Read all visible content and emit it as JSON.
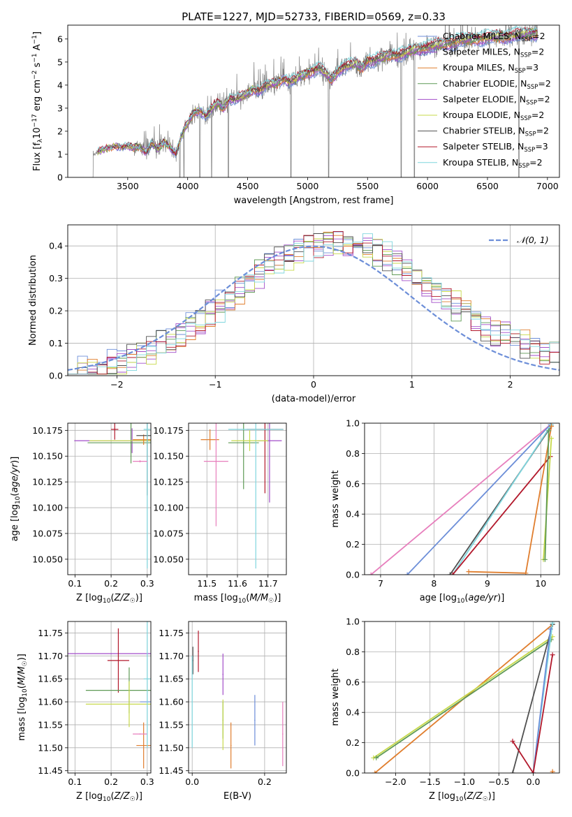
{
  "figure_title": "PLATE=1227, MJD=52733, FIBERID=0569, z=0.33",
  "colors": {
    "c0": "#6c8ed8",
    "c1": "#6c8ed8",
    "c2": "#e07e2e",
    "c3": "#5f9a55",
    "c4": "#a24dc9",
    "c5": "#c7d94a",
    "c6": "#505050",
    "c7": "#b2182b",
    "c8": "#7fd6de",
    "pink": "#e77fbd",
    "grid": "#b0b0b0"
  },
  "chart_data": [
    {
      "id": "spectrum",
      "type": "line",
      "xlabel": "wavelength [Angstrom, rest frame]",
      "ylabel": "Flux [f_λ 10^-17 erg cm^-2 s^-1 A^-1]",
      "xlim": [
        3000,
        7100
      ],
      "ylim": [
        0,
        6.6
      ],
      "xticks": [
        3500,
        4000,
        4500,
        5000,
        5500,
        6000,
        6500,
        7000
      ],
      "yticks": [
        0,
        1,
        2,
        3,
        4,
        5,
        6
      ],
      "grid": false,
      "legend": "top-right",
      "legend_entries": [
        {
          "text": "Chabrier MILES, N",
          "sub": "SSP",
          "tail": "=2"
        },
        {
          "text": "Salpeter MILES, N",
          "sub": "SSP",
          "tail": "=2"
        },
        {
          "text": "Kroupa MILES, N",
          "sub": "SSP",
          "tail": "=3"
        },
        {
          "text": "Chabrier ELODIE, N",
          "sub": "SSP",
          "tail": "=2"
        },
        {
          "text": "Salpeter ELODIE, N",
          "sub": "SSP",
          "tail": "=2"
        },
        {
          "text": "Kroupa ELODIE, N",
          "sub": "SSP",
          "tail": "=2"
        },
        {
          "text": "Chabrier STELIB, N",
          "sub": "SSP",
          "tail": "=2"
        },
        {
          "text": "Salpeter STELIB, N",
          "sub": "SSP",
          "tail": "=3"
        },
        {
          "text": "Kroupa STELIB, N",
          "sub": "SSP",
          "tail": "=2"
        }
      ],
      "data_range": [
        3200,
        6920
      ],
      "continuum": {
        "x": [
          3200,
          3250,
          3300,
          3350,
          3400,
          3450,
          3500,
          3550,
          3600,
          3650,
          3700,
          3750,
          3800,
          3850,
          3900,
          3950,
          4000,
          4050,
          4100,
          4150,
          4200,
          4250,
          4300,
          4350,
          4400,
          4450,
          4500,
          4550,
          4600,
          4650,
          4700,
          4750,
          4800,
          4850,
          4900,
          4950,
          5000,
          5050,
          5100,
          5150,
          5200,
          5250,
          5300,
          5350,
          5400,
          5450,
          5500,
          5550,
          5600,
          5650,
          5700,
          5750,
          5800,
          5850,
          5900,
          5950,
          6000,
          6100,
          6200,
          6300,
          6400,
          6500,
          6600,
          6700,
          6800,
          6920
        ],
        "y": [
          0.9,
          1.1,
          1.2,
          1.3,
          1.35,
          1.3,
          1.35,
          1.25,
          1.35,
          1.1,
          1.45,
          1.2,
          1.5,
          1.35,
          1.0,
          1.8,
          2.3,
          2.8,
          2.9,
          2.6,
          2.95,
          3.2,
          3.0,
          3.4,
          3.35,
          3.45,
          3.6,
          3.8,
          3.75,
          3.9,
          4.0,
          4.05,
          4.25,
          4.1,
          4.2,
          4.35,
          4.5,
          4.6,
          4.7,
          4.45,
          4.2,
          4.6,
          4.75,
          4.8,
          4.9,
          4.7,
          5.05,
          5.0,
          5.1,
          5.2,
          5.3,
          5.25,
          5.3,
          5.4,
          5.5,
          5.55,
          5.6,
          5.7,
          5.8,
          5.9,
          5.95,
          6.0,
          6.05,
          6.1,
          6.15,
          6.2
        ]
      },
      "noise_amplitude": 0.55,
      "absorption_lines": [
        3934,
        3969,
        4102,
        4200,
        4340,
        4861,
        5175,
        5780,
        5890,
        6762
      ]
    },
    {
      "id": "residuals",
      "type": "histogram",
      "xlabel": "(data-model)/error",
      "ylabel": "Normed distribution",
      "xlim": [
        -2.5,
        2.5
      ],
      "ylim": [
        0,
        0.465
      ],
      "xticks": [
        -2,
        -1,
        0,
        1,
        2
      ],
      "yticks": [
        0.0,
        0.1,
        0.2,
        0.3,
        0.4
      ],
      "grid": true,
      "legend": "top-right",
      "gaussian_label": "𝒩(0, 1)",
      "bin_edges": [
        -2.5,
        2.5
      ],
      "nbins": 50
    },
    {
      "id": "age-vs-Z",
      "type": "errorbar",
      "xlabel": "Z [log10(Z/Z☉)]",
      "ylabel": "age [log10(age/yr)]",
      "xlim": [
        0.08,
        0.31
      ],
      "ylim": [
        10.035,
        10.182
      ],
      "xticks": [
        0.1,
        0.2,
        0.3
      ],
      "yticks": [
        10.05,
        10.075,
        10.1,
        10.125,
        10.15,
        10.175
      ],
      "grid": true,
      "points": [
        {
          "c": "c4",
          "x": 0.258,
          "y": 10.165,
          "xerr": 0.16,
          "yerr": 0.012
        },
        {
          "c": "c3",
          "x": 0.255,
          "y": 10.163,
          "xerr": 0.12,
          "yerr": 0.02
        },
        {
          "c": "c5",
          "x": 0.3,
          "y": 10.165,
          "xerr": 0.16,
          "yerr": 0.005
        },
        {
          "c": "c2",
          "x": 0.29,
          "y": 10.166,
          "xerr": 0.03,
          "yerr": 0.005
        },
        {
          "c": "c7",
          "x": 0.21,
          "y": 10.176,
          "xerr": 0.01,
          "yerr": 0.01
        },
        {
          "c": "c6",
          "x": 0.3,
          "y": 10.17,
          "xerr": 0.03,
          "yerr": 0.058
        },
        {
          "c": "c8",
          "x": 0.3,
          "y": 10.176,
          "xerr": 0.01,
          "yerr": 0.135
        },
        {
          "c": "pink",
          "x": 0.28,
          "y": 10.145,
          "xerr": 0.02,
          "yerr": 0.001
        }
      ]
    },
    {
      "id": "age-vs-mass",
      "type": "errorbar",
      "xlabel": "mass [log10(M/M☉)]",
      "ylabel": "",
      "xlim": [
        11.44,
        11.76
      ],
      "ylim": [
        10.035,
        10.182
      ],
      "xticks": [
        11.5,
        11.6,
        11.7
      ],
      "yticks": [
        10.05,
        10.075,
        10.1,
        10.125,
        10.15,
        10.175
      ],
      "grid": true,
      "points": [
        {
          "c": "c2",
          "x": 11.51,
          "y": 10.166,
          "xerr": 0.03,
          "yerr": 0.01
        },
        {
          "c": "pink",
          "x": 11.53,
          "y": 10.145,
          "xerr": 0.04,
          "yerr": 0.063
        },
        {
          "c": "c3",
          "x": 11.62,
          "y": 10.163,
          "xerr": 0.05,
          "yerr": 0.045
        },
        {
          "c": "c4",
          "x": 11.705,
          "y": 10.165,
          "xerr": 0.04,
          "yerr": 0.06
        },
        {
          "c": "c7",
          "x": 11.69,
          "y": 10.176,
          "xerr": 0.06,
          "yerr": 0.062
        },
        {
          "c": "c8",
          "x": 11.66,
          "y": 10.176,
          "xerr": 0.09,
          "yerr": 0.135
        },
        {
          "c": "c5",
          "x": 11.64,
          "y": 10.165,
          "xerr": 0.06,
          "yerr": 0.01
        }
      ]
    },
    {
      "id": "weight-vs-age",
      "type": "line",
      "xlabel": "age [log10(age/yr)]",
      "ylabel": "mass weight",
      "xlim": [
        6.7,
        10.35
      ],
      "ylim": [
        0,
        1.0
      ],
      "xticks": [
        7,
        8,
        9,
        10
      ],
      "yticks": [
        0.0,
        0.2,
        0.4,
        0.6,
        0.8,
        1.0
      ],
      "grid": true,
      "series": [
        {
          "c": "pink",
          "x": [
            6.82,
            10.18
          ],
          "y": [
            0.0,
            0.99
          ]
        },
        {
          "c": "c1",
          "x": [
            7.5,
            10.18
          ],
          "y": [
            0.0,
            0.99
          ]
        },
        {
          "c": "c6",
          "x": [
            8.3,
            10.2
          ],
          "y": [
            0.0,
            0.98
          ]
        },
        {
          "c": "c8",
          "x": [
            8.35,
            10.2
          ],
          "y": [
            0.0,
            0.99
          ]
        },
        {
          "c": "c7",
          "x": [
            8.35,
            10.18
          ],
          "y": [
            0.0,
            0.78
          ]
        },
        {
          "c": "c2",
          "x": [
            8.65,
            9.72,
            10.2
          ],
          "y": [
            0.02,
            0.01,
            0.98
          ]
        },
        {
          "c": "c5",
          "x": [
            10.05,
            10.2
          ],
          "y": [
            0.1,
            0.9
          ]
        },
        {
          "c": "c3",
          "x": [
            10.08,
            10.15
          ],
          "y": [
            0.1,
            0.95
          ]
        }
      ]
    },
    {
      "id": "mass-vs-Z",
      "type": "errorbar",
      "xlabel": "Z [log10(Z/Z☉)]",
      "ylabel": "mass [log10(M/M☉)]",
      "xlim": [
        0.08,
        0.31
      ],
      "ylim": [
        11.445,
        11.775
      ],
      "xticks": [
        0.1,
        0.2,
        0.3
      ],
      "yticks": [
        11.45,
        11.5,
        11.55,
        11.6,
        11.65,
        11.7,
        11.75
      ],
      "grid": true,
      "points": [
        {
          "c": "c4",
          "x": 0.2,
          "y": 11.705,
          "xerr": 0.12,
          "yerr": 0.0
        },
        {
          "c": "c7",
          "x": 0.22,
          "y": 11.69,
          "xerr": 0.03,
          "yerr": 0.07
        },
        {
          "c": "c3",
          "x": 0.25,
          "y": 11.625,
          "xerr": 0.12,
          "yerr": 0.05
        },
        {
          "c": "c5",
          "x": 0.25,
          "y": 11.595,
          "xerr": 0.12,
          "yerr": 0.05
        },
        {
          "c": "c2",
          "x": 0.29,
          "y": 11.505,
          "xerr": 0.02,
          "yerr": 0.05
        },
        {
          "c": "pink",
          "x": 0.28,
          "y": 11.53,
          "xerr": 0.02,
          "yerr": 0.0
        },
        {
          "c": "c1",
          "x": 0.3,
          "y": 11.6,
          "xerr": 0.02,
          "yerr": 0.0
        },
        {
          "c": "c8",
          "x": 0.3,
          "y": 11.65,
          "xerr": 0.01,
          "yerr": 0.15
        }
      ]
    },
    {
      "id": "mass-vs-ebv",
      "type": "errorbar",
      "xlabel": "E(B-V)",
      "ylabel": "",
      "xlim": [
        -0.01,
        0.26
      ],
      "ylim": [
        11.445,
        11.775
      ],
      "xticks": [
        0.0,
        0.2
      ],
      "yticks": [
        11.45,
        11.5,
        11.55,
        11.6,
        11.65,
        11.7,
        11.75
      ],
      "grid": true,
      "points": [
        {
          "c": "c6",
          "x": 0.002,
          "y": 11.69,
          "xerr": 0,
          "yerr": 0.03
        },
        {
          "c": "c8",
          "x": 0.0,
          "y": 11.6,
          "xerr": 0,
          "yerr": 0.1
        },
        {
          "c": "c7",
          "x": 0.017,
          "y": 11.71,
          "xerr": 0,
          "yerr": 0.045
        },
        {
          "c": "c4",
          "x": 0.085,
          "y": 11.66,
          "xerr": 0,
          "yerr": 0.045
        },
        {
          "c": "c3",
          "x": 0.085,
          "y": 11.56,
          "xerr": 0,
          "yerr": 0.04
        },
        {
          "c": "c5",
          "x": 0.085,
          "y": 11.55,
          "xerr": 0,
          "yerr": 0.055
        },
        {
          "c": "c2",
          "x": 0.107,
          "y": 11.505,
          "xerr": 0,
          "yerr": 0.05
        },
        {
          "c": "c1",
          "x": 0.173,
          "y": 11.56,
          "xerr": 0,
          "yerr": 0.055
        },
        {
          "c": "pink",
          "x": 0.25,
          "y": 11.53,
          "xerr": 0,
          "yerr": 0.07
        }
      ]
    },
    {
      "id": "weight-vs-Z",
      "type": "line",
      "xlabel": "Z [log10(Z/Z☉)]",
      "ylabel": "mass weight",
      "xlim": [
        -2.45,
        0.38
      ],
      "ylim": [
        0,
        1.0
      ],
      "xticks": [
        -2.0,
        -1.5,
        -1.0,
        -0.5,
        0.0
      ],
      "yticks": [
        0.0,
        0.2,
        0.4,
        0.6,
        0.8,
        1.0
      ],
      "grid": true,
      "series": [
        {
          "c": "c2",
          "x": [
            -2.3,
            0.28
          ],
          "y": [
            0.0,
            0.98
          ]
        },
        {
          "c": "c5",
          "x": [
            -2.32,
            0.28
          ],
          "y": [
            0.1,
            0.9
          ]
        },
        {
          "c": "c3",
          "x": [
            -2.28,
            0.26
          ],
          "y": [
            0.1,
            0.88
          ]
        },
        {
          "c": "c6",
          "x": [
            -0.3,
            0.28
          ],
          "y": [
            0.0,
            0.98
          ]
        },
        {
          "c": "c8",
          "x": [
            0.0,
            0.28
          ],
          "y": [
            0.0,
            0.99
          ]
        },
        {
          "c": "c1",
          "x": [
            0.0,
            0.25
          ],
          "y": [
            0.0,
            0.95
          ]
        },
        {
          "c": "c7",
          "x": [
            -0.3,
            0.0,
            0.28
          ],
          "y": [
            0.21,
            0.0,
            0.78
          ]
        },
        {
          "c": "c2",
          "x": [
            0.28,
            0.28
          ],
          "y": [
            0.0,
            0.01
          ]
        }
      ]
    }
  ]
}
